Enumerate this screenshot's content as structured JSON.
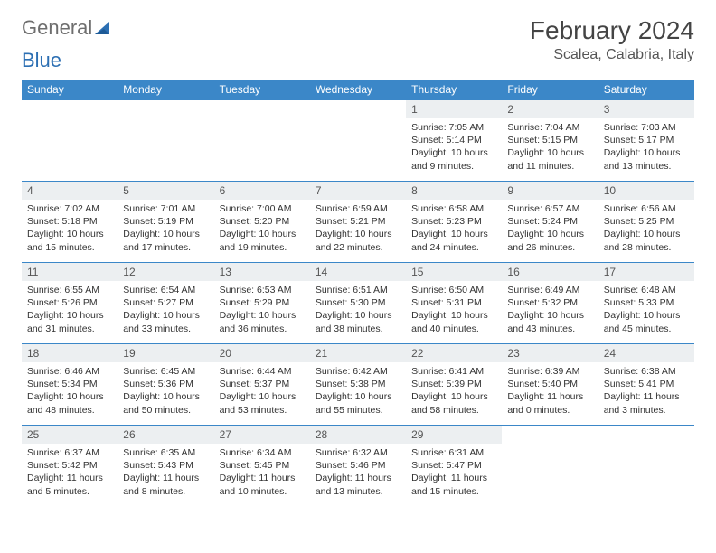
{
  "brand": {
    "word1": "General",
    "word2": "Blue",
    "text_color": "#6e6e6e",
    "accent_color": "#2c6fb3"
  },
  "title": "February 2024",
  "location": "Scalea, Calabria, Italy",
  "colors": {
    "header_bg": "#3b87c8",
    "header_fg": "#ffffff",
    "row_border": "#3b87c8",
    "daynum_bg": "#eceff1",
    "body_text": "#333333"
  },
  "typography": {
    "title_fontsize_pt": 21,
    "location_fontsize_pt": 12,
    "header_fontsize_pt": 9,
    "cell_fontsize_pt": 8
  },
  "layout": {
    "columns": 7,
    "rows": 5,
    "leading_blanks": 4,
    "trailing_blanks": 2
  },
  "weekdays": [
    "Sunday",
    "Monday",
    "Tuesday",
    "Wednesday",
    "Thursday",
    "Friday",
    "Saturday"
  ],
  "days": [
    {
      "n": "1",
      "sunrise": "7:05 AM",
      "sunset": "5:14 PM",
      "daylight": "10 hours and 9 minutes."
    },
    {
      "n": "2",
      "sunrise": "7:04 AM",
      "sunset": "5:15 PM",
      "daylight": "10 hours and 11 minutes."
    },
    {
      "n": "3",
      "sunrise": "7:03 AM",
      "sunset": "5:17 PM",
      "daylight": "10 hours and 13 minutes."
    },
    {
      "n": "4",
      "sunrise": "7:02 AM",
      "sunset": "5:18 PM",
      "daylight": "10 hours and 15 minutes."
    },
    {
      "n": "5",
      "sunrise": "7:01 AM",
      "sunset": "5:19 PM",
      "daylight": "10 hours and 17 minutes."
    },
    {
      "n": "6",
      "sunrise": "7:00 AM",
      "sunset": "5:20 PM",
      "daylight": "10 hours and 19 minutes."
    },
    {
      "n": "7",
      "sunrise": "6:59 AM",
      "sunset": "5:21 PM",
      "daylight": "10 hours and 22 minutes."
    },
    {
      "n": "8",
      "sunrise": "6:58 AM",
      "sunset": "5:23 PM",
      "daylight": "10 hours and 24 minutes."
    },
    {
      "n": "9",
      "sunrise": "6:57 AM",
      "sunset": "5:24 PM",
      "daylight": "10 hours and 26 minutes."
    },
    {
      "n": "10",
      "sunrise": "6:56 AM",
      "sunset": "5:25 PM",
      "daylight": "10 hours and 28 minutes."
    },
    {
      "n": "11",
      "sunrise": "6:55 AM",
      "sunset": "5:26 PM",
      "daylight": "10 hours and 31 minutes."
    },
    {
      "n": "12",
      "sunrise": "6:54 AM",
      "sunset": "5:27 PM",
      "daylight": "10 hours and 33 minutes."
    },
    {
      "n": "13",
      "sunrise": "6:53 AM",
      "sunset": "5:29 PM",
      "daylight": "10 hours and 36 minutes."
    },
    {
      "n": "14",
      "sunrise": "6:51 AM",
      "sunset": "5:30 PM",
      "daylight": "10 hours and 38 minutes."
    },
    {
      "n": "15",
      "sunrise": "6:50 AM",
      "sunset": "5:31 PM",
      "daylight": "10 hours and 40 minutes."
    },
    {
      "n": "16",
      "sunrise": "6:49 AM",
      "sunset": "5:32 PM",
      "daylight": "10 hours and 43 minutes."
    },
    {
      "n": "17",
      "sunrise": "6:48 AM",
      "sunset": "5:33 PM",
      "daylight": "10 hours and 45 minutes."
    },
    {
      "n": "18",
      "sunrise": "6:46 AM",
      "sunset": "5:34 PM",
      "daylight": "10 hours and 48 minutes."
    },
    {
      "n": "19",
      "sunrise": "6:45 AM",
      "sunset": "5:36 PM",
      "daylight": "10 hours and 50 minutes."
    },
    {
      "n": "20",
      "sunrise": "6:44 AM",
      "sunset": "5:37 PM",
      "daylight": "10 hours and 53 minutes."
    },
    {
      "n": "21",
      "sunrise": "6:42 AM",
      "sunset": "5:38 PM",
      "daylight": "10 hours and 55 minutes."
    },
    {
      "n": "22",
      "sunrise": "6:41 AM",
      "sunset": "5:39 PM",
      "daylight": "10 hours and 58 minutes."
    },
    {
      "n": "23",
      "sunrise": "6:39 AM",
      "sunset": "5:40 PM",
      "daylight": "11 hours and 0 minutes."
    },
    {
      "n": "24",
      "sunrise": "6:38 AM",
      "sunset": "5:41 PM",
      "daylight": "11 hours and 3 minutes."
    },
    {
      "n": "25",
      "sunrise": "6:37 AM",
      "sunset": "5:42 PM",
      "daylight": "11 hours and 5 minutes."
    },
    {
      "n": "26",
      "sunrise": "6:35 AM",
      "sunset": "5:43 PM",
      "daylight": "11 hours and 8 minutes."
    },
    {
      "n": "27",
      "sunrise": "6:34 AM",
      "sunset": "5:45 PM",
      "daylight": "11 hours and 10 minutes."
    },
    {
      "n": "28",
      "sunrise": "6:32 AM",
      "sunset": "5:46 PM",
      "daylight": "11 hours and 13 minutes."
    },
    {
      "n": "29",
      "sunrise": "6:31 AM",
      "sunset": "5:47 PM",
      "daylight": "11 hours and 15 minutes."
    }
  ],
  "labels": {
    "sunrise": "Sunrise:",
    "sunset": "Sunset:",
    "daylight": "Daylight:"
  }
}
